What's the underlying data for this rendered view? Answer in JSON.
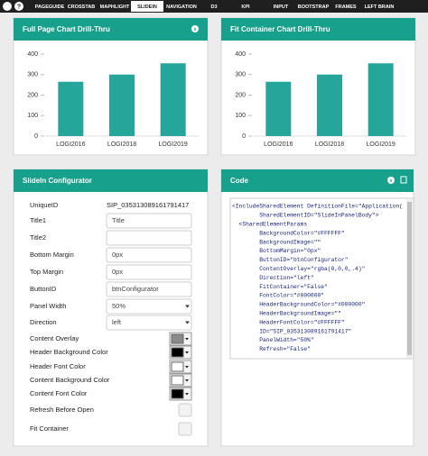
{
  "nav": {
    "items": [
      "PAGEGUIDE",
      "CROSSTAB",
      "MAPHLIGHT",
      "SLIDEIN",
      "NAVIGATION",
      "D3",
      "KPI",
      "INPUT",
      "BOOTSTRAP",
      "FRAMES",
      "LEFT BRAIN"
    ],
    "active": 3
  },
  "panels": [
    {
      "title": "Full Page Chart Drill-Thru",
      "chart": {
        "type": "bar",
        "categories": [
          "LOGI2016",
          "LOGI2018",
          "LOGI2019"
        ],
        "values": [
          265,
          300,
          355
        ],
        "color": "#26a69a",
        "ylim": [
          0,
          400
        ],
        "yticks": [
          0,
          100,
          200,
          300,
          400
        ]
      }
    },
    {
      "title": "Fit Container Chart Drill-Thru",
      "chart": {
        "type": "bar",
        "categories": [
          "LOGI2016",
          "LOGI2018",
          "LOGI2019"
        ],
        "values": [
          265,
          300,
          355
        ],
        "color": "#26a69a",
        "ylim": [
          0,
          400
        ],
        "yticks": [
          0,
          100,
          200,
          300,
          400
        ]
      }
    }
  ],
  "configurator": {
    "title": "SlideIn Configurator",
    "rows": [
      {
        "label": "UniqueID",
        "control": "text",
        "value": "SIP_035313089161791417"
      },
      {
        "label": "Title1",
        "control": "input",
        "value": "Title"
      },
      {
        "label": "Title2",
        "control": "input"
      },
      {
        "label": "Bottom Margin",
        "control": "input",
        "value": "0px"
      },
      {
        "label": "Top Margin",
        "control": "input",
        "value": "0px"
      },
      {
        "label": "ButtonID",
        "control": "input",
        "value": "btnConfigurator"
      },
      {
        "label": "Panel Width",
        "control": "select",
        "value": "50%"
      },
      {
        "label": "Direction",
        "control": "select",
        "value": "left"
      },
      {
        "label": "Content Overlay",
        "control": "color",
        "color": "#8a8a8a"
      },
      {
        "label": "Header Background Color",
        "control": "color",
        "color": "#000000"
      },
      {
        "label": "Header Font Color",
        "control": "color",
        "color": "#ffffff"
      },
      {
        "label": "Content Background Color",
        "control": "color",
        "color": "#ffffff"
      },
      {
        "label": "Content Font Color",
        "control": "color",
        "color": "#000000"
      },
      {
        "label": "Refresh Before Open",
        "control": "checkbox"
      },
      {
        "label": "Fit Container",
        "control": "checkbox"
      }
    ]
  },
  "code": {
    "title": "Code",
    "lines": [
      "<IncludeSharedElement DefinitionFile=\"Application(",
      "        SharedElementID=\"SlideInPanelBody\">",
      "  <SharedElementParams",
      "        BackgroundColor=\"#FFFFFF\"",
      "        BackgroundImage=\"\"",
      "        BottomMargin=\"0px\"",
      "        ButtonID=\"btnConfigurator\"",
      "        ContentOverlay=\"rgba(0,0,0,.4)\"",
      "        Direction=\"left\"",
      "        FitContainer=\"False\"",
      "        FontColor=\"#000000\"",
      "        HeaderBackgroundColor=\"#000000\"",
      "        HeaderBackgroundImage=\"\"",
      "        HeaderFontColor=\"#FFFFFF\"",
      "        ID=\"SIP_035313089161791417\"",
      "        PanelWidth=\"50%\"",
      "        Refresh=\"False\""
    ]
  }
}
